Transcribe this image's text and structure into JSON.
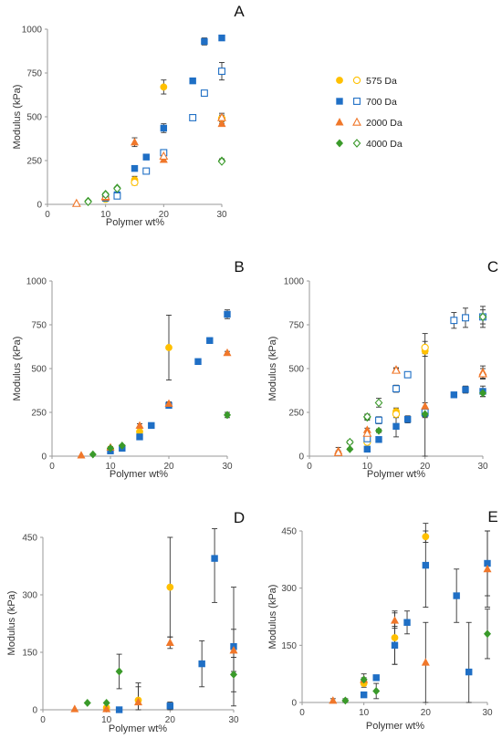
{
  "colors": {
    "575 Da": "#FFC000",
    "700 Da": "#1F6FC5",
    "2000 Da": "#F0772A",
    "4000 Da": "#3A9A2A",
    "axis": "#9a9a9a",
    "errorbar": "#333333"
  },
  "legend": {
    "entries": [
      {
        "label": "575 Da",
        "marker": "circle"
      },
      {
        "label": "700 Da",
        "marker": "square"
      },
      {
        "label": "2000 Da",
        "marker": "triangle"
      },
      {
        "label": "4000 Da",
        "marker": "diamond"
      }
    ]
  },
  "chart_data": [
    {
      "panel": "A",
      "type": "scatter",
      "xlabel": "Polymer wt%",
      "ylabel": "Modulus (kPa)",
      "xlim": [
        0,
        30
      ],
      "ylim": [
        0,
        1000
      ],
      "xticks": [
        0,
        10,
        20,
        30
      ],
      "yticks": [
        0,
        250,
        500,
        750,
        1000
      ],
      "series": [
        {
          "name": "575 Da",
          "filled": true,
          "points": [
            [
              10,
              45,
              8
            ],
            [
              15,
              140,
              20
            ],
            [
              20,
              670,
              40
            ]
          ]
        },
        {
          "name": "575 Da",
          "filled": false,
          "points": [
            [
              10,
              30,
              5
            ],
            [
              15,
              125,
              15
            ],
            [
              30,
              490,
              30
            ]
          ]
        },
        {
          "name": "700 Da",
          "filled": true,
          "points": [
            [
              10,
              35,
              5
            ],
            [
              12,
              55,
              5
            ],
            [
              15,
              205,
              10
            ],
            [
              17,
              270,
              10
            ],
            [
              20,
              435,
              25
            ],
            [
              25,
              705,
              15
            ],
            [
              27,
              930,
              20
            ],
            [
              30,
              950,
              0
            ]
          ]
        },
        {
          "name": "700 Da",
          "filled": false,
          "points": [
            [
              12,
              48,
              0
            ],
            [
              17,
              190,
              8
            ],
            [
              20,
              295,
              10
            ],
            [
              25,
              495,
              8
            ],
            [
              27,
              635,
              15
            ],
            [
              30,
              760,
              50
            ]
          ]
        },
        {
          "name": "2000 Da",
          "filled": true,
          "points": [
            [
              5,
              5,
              0
            ],
            [
              10,
              40,
              5
            ],
            [
              15,
              355,
              25
            ],
            [
              20,
              255,
              10
            ],
            [
              30,
              460,
              10
            ]
          ]
        },
        {
          "name": "2000 Da",
          "filled": false,
          "points": [
            [
              5,
              5,
              0
            ],
            [
              10,
              45,
              5
            ],
            [
              20,
              275,
              10
            ],
            [
              30,
              495,
              15
            ]
          ]
        },
        {
          "name": "4000 Da",
          "filled": true,
          "points": [
            [
              7,
              20,
              0
            ],
            [
              10,
              60,
              5
            ],
            [
              12,
              95,
              5
            ],
            [
              30,
              250,
              10
            ]
          ]
        },
        {
          "name": "4000 Da",
          "filled": false,
          "points": [
            [
              7,
              15,
              0
            ],
            [
              10,
              55,
              5
            ],
            [
              12,
              90,
              5
            ],
            [
              30,
              245,
              5
            ]
          ]
        }
      ]
    },
    {
      "panel": "B",
      "type": "scatter",
      "xlabel": "Polymer wt%",
      "ylabel": "Modulus (kPa)",
      "xlim": [
        0,
        30
      ],
      "ylim": [
        0,
        1000
      ],
      "xticks": [
        0,
        10,
        20,
        30
      ],
      "yticks": [
        0,
        250,
        500,
        750,
        1000
      ],
      "series": [
        {
          "name": "575 Da",
          "filled": true,
          "points": [
            [
              10,
              40,
              0
            ],
            [
              15,
              140,
              20
            ],
            [
              20,
              620,
              185
            ]
          ]
        },
        {
          "name": "700 Da",
          "filled": true,
          "points": [
            [
              10,
              30,
              5
            ],
            [
              12,
              45,
              5
            ],
            [
              15,
              110,
              10
            ],
            [
              17,
              175,
              5
            ],
            [
              20,
              290,
              10
            ],
            [
              25,
              540,
              10
            ],
            [
              27,
              660,
              15
            ],
            [
              30,
              810,
              25
            ]
          ]
        },
        {
          "name": "2000 Da",
          "filled": true,
          "points": [
            [
              5,
              5,
              0
            ],
            [
              10,
              50,
              5
            ],
            [
              15,
              175,
              10
            ],
            [
              20,
              300,
              10
            ],
            [
              30,
              590,
              8
            ]
          ]
        },
        {
          "name": "4000 Da",
          "filled": true,
          "points": [
            [
              7,
              10,
              0
            ],
            [
              10,
              45,
              5
            ],
            [
              12,
              60,
              5
            ],
            [
              30,
              235,
              15
            ]
          ]
        }
      ]
    },
    {
      "panel": "C",
      "type": "scatter",
      "xlabel": "Polymer wt%",
      "ylabel": "Modulus (kPa)",
      "xlim": [
        0,
        30
      ],
      "ylim": [
        0,
        1000
      ],
      "xticks": [
        0,
        10,
        20,
        30
      ],
      "yticks": [
        0,
        250,
        500,
        750,
        1000
      ],
      "series": [
        {
          "name": "575 Da",
          "filled": true,
          "points": [
            [
              10,
              90,
              15
            ],
            [
              15,
              255,
              20
            ],
            [
              20,
              600,
              30
            ]
          ]
        },
        {
          "name": "575 Da",
          "filled": false,
          "points": [
            [
              10,
              80,
              10
            ],
            [
              15,
              240,
              20
            ],
            [
              20,
              620,
              35
            ]
          ]
        },
        {
          "name": "700 Da",
          "filled": true,
          "points": [
            [
              10,
              40,
              10
            ],
            [
              12,
              95,
              10
            ],
            [
              15,
              170,
              60
            ],
            [
              17,
              210,
              20
            ],
            [
              20,
              245,
              20
            ],
            [
              25,
              350,
              10
            ],
            [
              27,
              380,
              20
            ],
            [
              30,
              370,
              30
            ]
          ]
        },
        {
          "name": "700 Da",
          "filled": false,
          "points": [
            [
              10,
              100,
              10
            ],
            [
              12,
              205,
              20
            ],
            [
              15,
              385,
              20
            ],
            [
              17,
              465,
              15
            ],
            [
              20,
              250,
              450
            ],
            [
              25,
              775,
              45
            ],
            [
              27,
              790,
              55
            ],
            [
              30,
              795,
              60
            ]
          ]
        },
        {
          "name": "2000 Da",
          "filled": true,
          "points": [
            [
              5,
              30,
              20
            ],
            [
              10,
              150,
              10
            ],
            [
              15,
              495,
              10
            ],
            [
              20,
              285,
              20
            ],
            [
              30,
              480,
              35
            ]
          ]
        },
        {
          "name": "2000 Da",
          "filled": false,
          "points": [
            [
              5,
              20,
              10
            ],
            [
              10,
              130,
              10
            ],
            [
              15,
              490,
              10
            ],
            [
              30,
              470,
              30
            ]
          ]
        },
        {
          "name": "4000 Da",
          "filled": true,
          "points": [
            [
              7,
              40,
              5
            ],
            [
              10,
              220,
              15
            ],
            [
              12,
              145,
              10
            ],
            [
              20,
              240,
              20
            ],
            [
              30,
              360,
              20
            ]
          ]
        },
        {
          "name": "4000 Da",
          "filled": false,
          "points": [
            [
              7,
              80,
              10
            ],
            [
              10,
              225,
              15
            ],
            [
              12,
              305,
              25
            ],
            [
              30,
              795,
              40
            ]
          ]
        }
      ]
    },
    {
      "panel": "D",
      "type": "scatter",
      "xlabel": "Polymer wt%",
      "ylabel": "Modulus (kPa)",
      "xlim": [
        0,
        30
      ],
      "ylim": [
        0,
        450
      ],
      "xticks": [
        0,
        10,
        20,
        30
      ],
      "yticks": [
        0,
        150,
        300,
        450
      ],
      "series": [
        {
          "name": "575 Da",
          "filled": true,
          "points": [
            [
              10,
              5,
              5
            ],
            [
              15,
              25,
              45
            ],
            [
              20,
              320,
              130
            ]
          ]
        },
        {
          "name": "700 Da",
          "filled": true,
          "points": [
            [
              12,
              0,
              0
            ],
            [
              20,
              10,
              10
            ],
            [
              25,
              120,
              60
            ],
            [
              27,
              395,
              115
            ],
            [
              30,
              165,
              155
            ]
          ]
        },
        {
          "name": "2000 Da",
          "filled": true,
          "points": [
            [
              5,
              2,
              0
            ],
            [
              10,
              2,
              0
            ],
            [
              15,
              20,
              40
            ],
            [
              20,
              175,
              15
            ],
            [
              30,
              155,
              55
            ]
          ]
        },
        {
          "name": "4000 Da",
          "filled": true,
          "points": [
            [
              7,
              18,
              0
            ],
            [
              10,
              18,
              0
            ],
            [
              12,
              100,
              45
            ],
            [
              30,
              92,
              45
            ]
          ]
        }
      ]
    },
    {
      "panel": "E",
      "type": "scatter",
      "xlabel": "Polymer wt%",
      "ylabel": "Modulus (kPa)",
      "xlim": [
        0,
        30
      ],
      "ylim": [
        0,
        450
      ],
      "xticks": [
        0,
        10,
        20,
        30
      ],
      "yticks": [
        0,
        150,
        300,
        450
      ],
      "series": [
        {
          "name": "575 Da",
          "filled": true,
          "points": [
            [
              10,
              50,
              10
            ],
            [
              15,
              170,
              70
            ],
            [
              20,
              435,
              15
            ]
          ]
        },
        {
          "name": "700 Da",
          "filled": true,
          "points": [
            [
              10,
              20,
              0
            ],
            [
              12,
              65,
              5
            ],
            [
              15,
              150,
              50
            ],
            [
              17,
              210,
              30
            ],
            [
              20,
              360,
              110
            ],
            [
              25,
              280,
              70
            ],
            [
              27,
              80,
              130
            ],
            [
              30,
              365,
              85
            ]
          ]
        },
        {
          "name": "2000 Da",
          "filled": true,
          "points": [
            [
              5,
              5,
              5
            ],
            [
              10,
              60,
              5
            ],
            [
              15,
              215,
              20
            ],
            [
              20,
              105,
              105
            ],
            [
              30,
              350,
              100
            ]
          ]
        },
        {
          "name": "4000 Da",
          "filled": true,
          "points": [
            [
              7,
              5,
              5
            ],
            [
              10,
              60,
              15
            ],
            [
              12,
              30,
              20
            ],
            [
              30,
              180,
              65
            ]
          ]
        }
      ]
    }
  ]
}
